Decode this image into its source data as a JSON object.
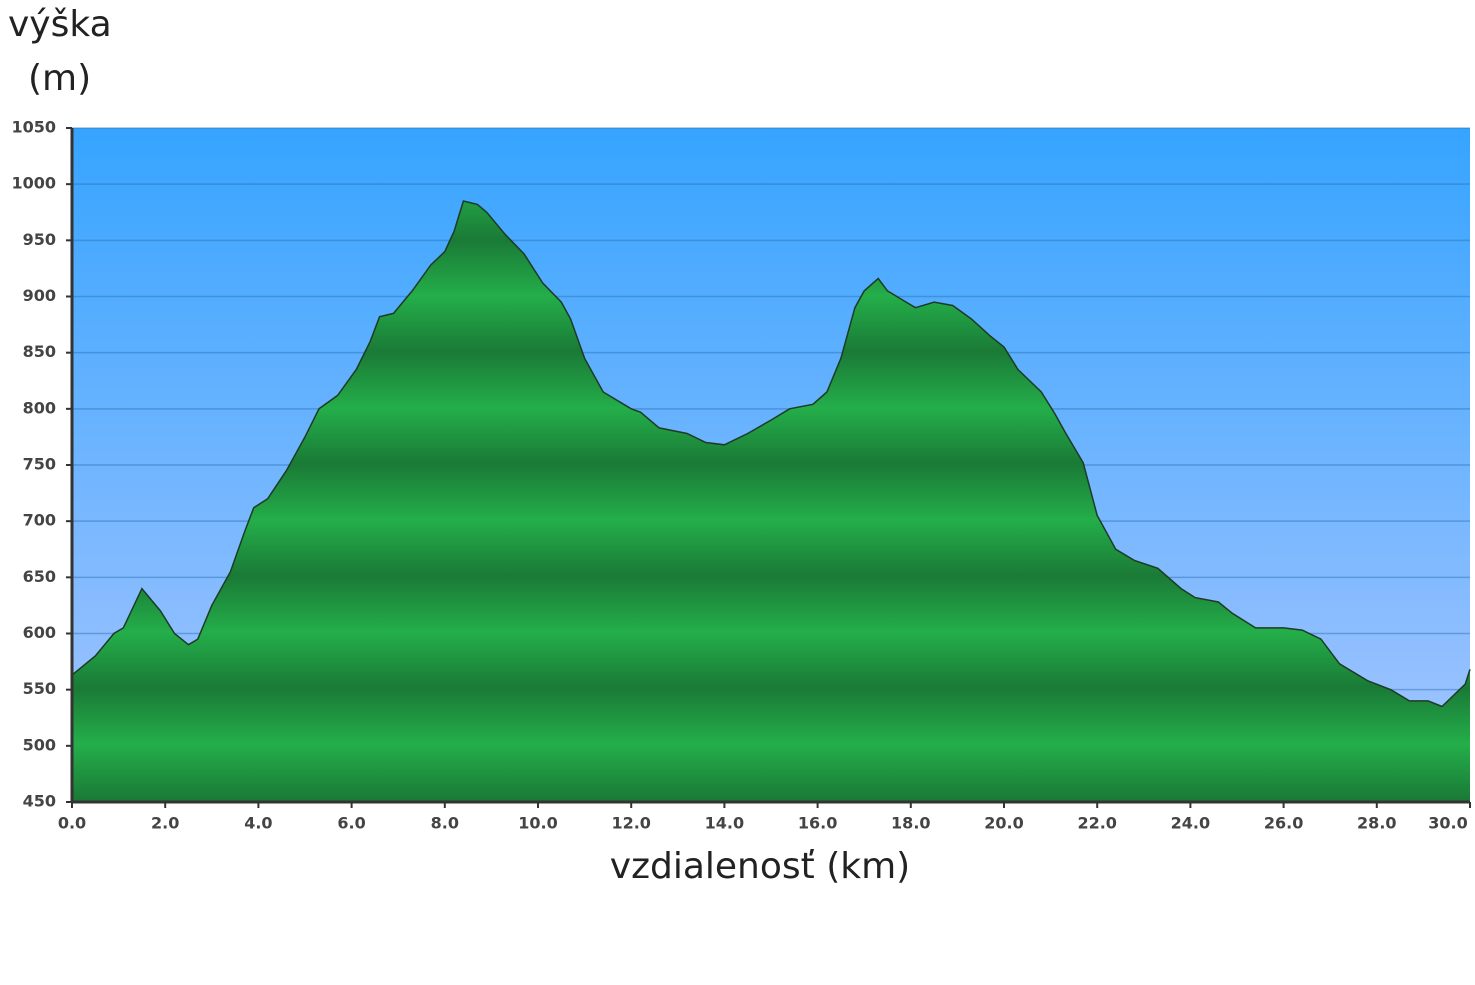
{
  "chart_data": {
    "type": "area",
    "ylabel": [
      "výška",
      "(m)"
    ],
    "xlabel": "vzdialenosť (km)",
    "x": [
      0,
      0.5,
      0.9,
      1.1,
      1.5,
      1.9,
      2.2,
      2.5,
      2.7,
      3.0,
      3.4,
      3.7,
      3.9,
      4.2,
      4.6,
      5.0,
      5.3,
      5.7,
      6.1,
      6.4,
      6.6,
      6.9,
      7.3,
      7.7,
      8.0,
      8.2,
      8.4,
      8.7,
      8.9,
      9.3,
      9.7,
      10.1,
      10.5,
      10.7,
      11.0,
      11.4,
      12.0,
      12.2,
      12.6,
      13.2,
      13.6,
      14.0,
      14.5,
      15.0,
      15.4,
      15.9,
      16.2,
      16.5,
      16.8,
      17.0,
      17.3,
      17.5,
      17.9,
      18.1,
      18.5,
      18.9,
      19.3,
      19.7,
      20.0,
      20.3,
      20.8,
      21.1,
      21.3,
      21.7,
      22.0,
      22.4,
      22.8,
      23.3,
      23.8,
      24.1,
      24.6,
      24.9,
      25.4,
      26.0,
      26.4,
      26.8,
      27.2,
      27.8,
      28.3,
      28.7,
      29.1,
      29.4,
      29.9,
      30.0
    ],
    "series": [
      {
        "color": "#22a848",
        "values": [
          563,
          580,
          600,
          605,
          640,
          620,
          600,
          590,
          595,
          625,
          655,
          690,
          712,
          720,
          745,
          775,
          800,
          812,
          835,
          860,
          882,
          885,
          905,
          928,
          940,
          958,
          985,
          982,
          975,
          955,
          938,
          912,
          895,
          880,
          845,
          815,
          800,
          797,
          783,
          778,
          770,
          768,
          778,
          790,
          800,
          804,
          815,
          845,
          890,
          905,
          916,
          905,
          895,
          890,
          895,
          892,
          880,
          865,
          855,
          835,
          815,
          795,
          780,
          752,
          705,
          675,
          665,
          658,
          640,
          632,
          628,
          618,
          605,
          605,
          603,
          595,
          573,
          558,
          550,
          540,
          540,
          535,
          555,
          568
        ]
      }
    ],
    "xlim": [
      0,
      30
    ],
    "xticks": [
      {
        "value": 0,
        "label": "0.0"
      },
      {
        "value": 2,
        "label": "2.0"
      },
      {
        "value": 4,
        "label": "4.0"
      },
      {
        "value": 6,
        "label": "6.0"
      },
      {
        "value": 8,
        "label": "8.0"
      },
      {
        "value": 10,
        "label": "10.0"
      },
      {
        "value": 12,
        "label": "12.0"
      },
      {
        "value": 14,
        "label": "14.0"
      },
      {
        "value": 16,
        "label": "16.0"
      },
      {
        "value": 18,
        "label": "18.0"
      },
      {
        "value": 20,
        "label": "20.0"
      },
      {
        "value": 22,
        "label": "22.0"
      },
      {
        "value": 24,
        "label": "24.0"
      },
      {
        "value": 26,
        "label": "26.0"
      },
      {
        "value": 28,
        "label": "28.0"
      },
      {
        "value": 30,
        "label": "30.0"
      }
    ],
    "ylim": [
      450,
      1050
    ],
    "yticks": [
      450,
      500,
      550,
      600,
      650,
      700,
      750,
      800,
      850,
      900,
      950,
      1000,
      1050
    ],
    "grid": true
  }
}
